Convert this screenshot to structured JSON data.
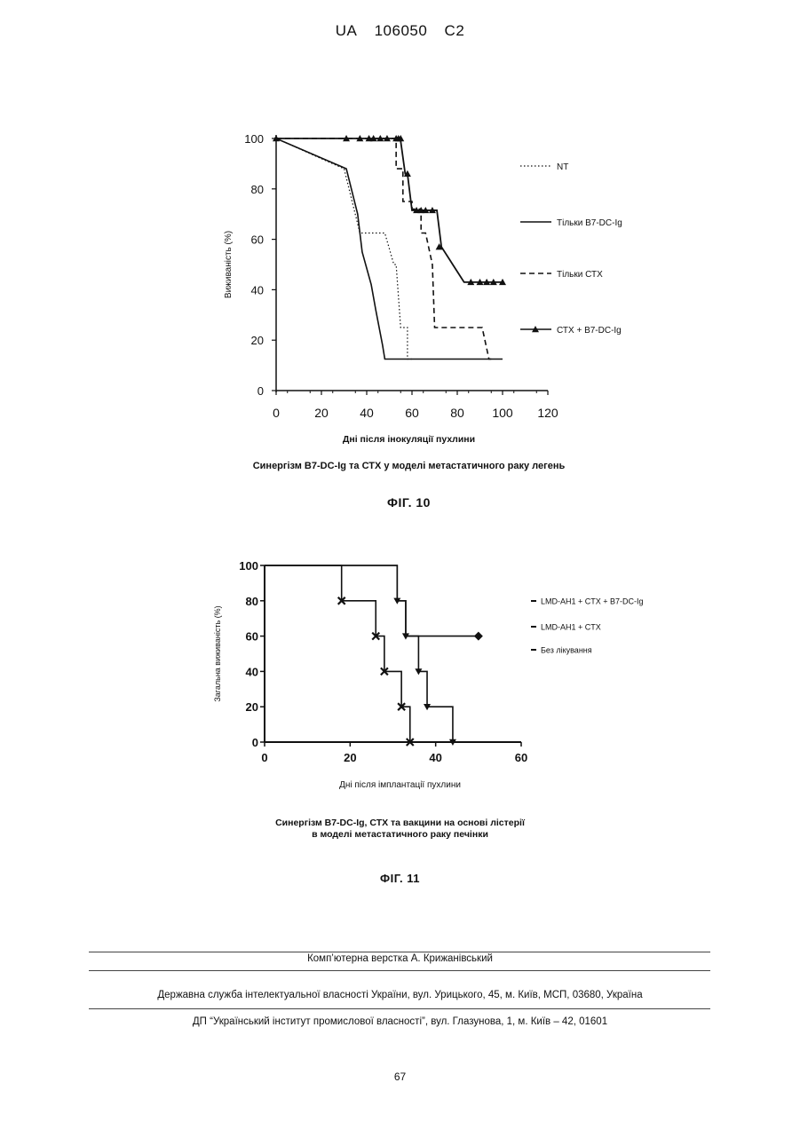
{
  "header": {
    "prefix": "UA",
    "number": "106050",
    "kind": "C2"
  },
  "chart_data": [
    {
      "type": "line",
      "chart_id": "fig10",
      "xlabel": "Дні після інокуляції пухлини",
      "ylabel": "Виживаність (%)",
      "xlim": [
        0,
        120
      ],
      "ylim": [
        0,
        100
      ],
      "xticks": [
        "0",
        "20",
        "40",
        "60",
        "80",
        "100",
        "120"
      ],
      "yticks": [
        "0",
        "20",
        "40",
        "60",
        "80",
        "100"
      ],
      "caption": "Синергізм В7-DC-Ig та СТХ у моделі метастатичного раку легень",
      "series": [
        {
          "name": "NT",
          "style": "dotted",
          "points": [
            [
              0,
              100
            ],
            [
              30,
              88
            ],
            [
              37,
              62.5
            ],
            [
              48,
              62.5
            ],
            [
              52,
              50
            ],
            [
              53,
              50
            ],
            [
              55,
              25
            ],
            [
              58,
              25
            ],
            [
              58,
              12.5
            ],
            [
              60,
              12.5
            ]
          ]
        },
        {
          "name": "Тільки В7-DC-Ig",
          "style": "solid",
          "points": [
            [
              0,
              100
            ],
            [
              31,
              88
            ],
            [
              36,
              70
            ],
            [
              38,
              55
            ],
            [
              42,
              42
            ],
            [
              44,
              32
            ],
            [
              47,
              18
            ],
            [
              48,
              12.5
            ],
            [
              100,
              12.5
            ]
          ]
        },
        {
          "name": "Тільки СТХ",
          "style": "dashed",
          "points": [
            [
              0,
              100
            ],
            [
              53,
              100
            ],
            [
              53,
              88
            ],
            [
              56,
              88
            ],
            [
              56,
              75
            ],
            [
              60,
              75
            ],
            [
              60,
              72
            ],
            [
              64,
              72
            ],
            [
              64,
              62.5
            ],
            [
              66,
              62.5
            ],
            [
              69,
              50
            ],
            [
              70,
              25
            ],
            [
              91,
              25
            ],
            [
              94,
              12.5
            ],
            [
              95,
              12.5
            ]
          ]
        },
        {
          "name": "СТХ + В7-DC-Ig",
          "style": "solid-triangle",
          "points": [
            [
              0,
              100
            ],
            [
              54,
              100
            ],
            [
              55,
              99
            ],
            [
              57,
              86
            ],
            [
              58,
              86
            ],
            [
              60,
              71.5
            ],
            [
              71,
              71.5
            ],
            [
              73,
              57
            ],
            [
              83,
              43
            ],
            [
              100,
              43
            ]
          ],
          "markers": [
            [
              0,
              100
            ],
            [
              31,
              100
            ],
            [
              37,
              100
            ],
            [
              41,
              100
            ],
            [
              43,
              100
            ],
            [
              46,
              100
            ],
            [
              49,
              100
            ],
            [
              53,
              100
            ],
            [
              54,
              100
            ],
            [
              55,
              100
            ],
            [
              58,
              86
            ],
            [
              62,
              71.5
            ],
            [
              64,
              71.5
            ],
            [
              66,
              71.5
            ],
            [
              69,
              71.5
            ],
            [
              72,
              57
            ],
            [
              86,
              43
            ],
            [
              90,
              43
            ],
            [
              93,
              43
            ],
            [
              96,
              43
            ],
            [
              100,
              43
            ]
          ]
        }
      ]
    },
    {
      "type": "line",
      "chart_id": "fig11",
      "xlabel": "Дні після імплантації пухлини",
      "ylabel": "Загальна виживаність (%)",
      "xlim": [
        0,
        60
      ],
      "ylim": [
        0,
        100
      ],
      "xticks": [
        "0",
        "20",
        "40",
        "60"
      ],
      "yticks": [
        "0",
        "20",
        "40",
        "60",
        "80",
        "100"
      ],
      "caption": [
        "Синергізм В7-DC-Ig, СТХ та вакцини на основі лістерії",
        "в моделі метастатичного раку печінки"
      ],
      "series": [
        {
          "name": "LMD-AH1 + CTX + B7-DC-Ig",
          "marker": "diamond",
          "points": [
            [
              0,
              100
            ],
            [
              31,
              100
            ],
            [
              31,
              80
            ],
            [
              33,
              80
            ],
            [
              33,
              60
            ],
            [
              50,
              60
            ]
          ],
          "markers": [
            [
              50,
              60
            ]
          ]
        },
        {
          "name": "LMD-AH1 + CTX",
          "marker": "down-triangle",
          "points": [
            [
              0,
              100
            ],
            [
              31,
              100
            ],
            [
              31,
              80
            ],
            [
              33,
              80
            ],
            [
              33,
              60
            ],
            [
              36,
              60
            ],
            [
              36,
              40
            ],
            [
              38,
              40
            ],
            [
              38,
              20
            ],
            [
              44,
              20
            ],
            [
              44,
              0
            ]
          ],
          "markers": [
            [
              31,
              80
            ],
            [
              33,
              60
            ],
            [
              36,
              40
            ],
            [
              38,
              20
            ],
            [
              44,
              0
            ]
          ]
        },
        {
          "name": "Без лікування",
          "marker": "x",
          "points": [
            [
              0,
              100
            ],
            [
              18,
              100
            ],
            [
              18,
              80
            ],
            [
              26,
              80
            ],
            [
              26,
              60
            ],
            [
              28,
              60
            ],
            [
              28,
              40
            ],
            [
              32,
              40
            ],
            [
              32,
              20
            ],
            [
              34,
              20
            ],
            [
              34,
              0
            ]
          ],
          "markers": [
            [
              18,
              80
            ],
            [
              26,
              60
            ],
            [
              28,
              40
            ],
            [
              32,
              20
            ],
            [
              34,
              0
            ]
          ]
        }
      ]
    }
  ],
  "fig10_label": "ФІГ. 10",
  "fig11_label": "ФІГ. 11",
  "footer": {
    "layout": "Комп’ютерна верстка А. Крижанівський",
    "service": "Державна служба інтелектуальної власності України, вул. Урицького, 45, м. Київ, МСП, 03680, Україна",
    "institute": "ДП “Український інститут промислової власності”, вул. Глазунова, 1, м. Київ – 42, 01601"
  },
  "page_number": "67"
}
